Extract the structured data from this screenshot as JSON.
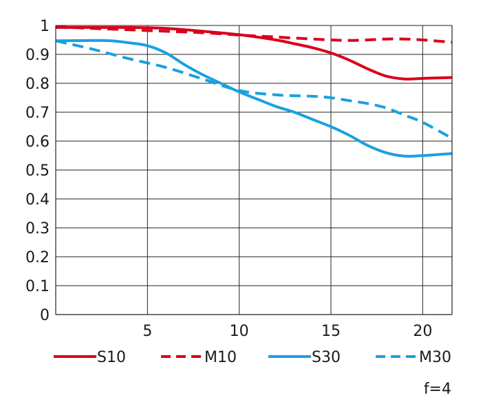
{
  "chart_data": {
    "type": "line",
    "title": "",
    "xlabel": "",
    "ylabel": "",
    "xlim": [
      0,
      21.6
    ],
    "ylim": [
      0,
      1
    ],
    "x_ticks": [
      5,
      10,
      15,
      20
    ],
    "x_tick_labels": [
      "5",
      "10",
      "15",
      "20"
    ],
    "y_ticks": [
      0,
      0.1,
      0.2,
      0.3,
      0.4,
      0.5,
      0.6,
      0.7,
      0.8,
      0.9,
      1
    ],
    "y_tick_labels": [
      "0",
      "0.1",
      "0.2",
      "0.3",
      "0.4",
      "0.5",
      "0.6",
      "0.7",
      "0.8",
      "0.9",
      "1"
    ],
    "grid": true,
    "legend_position": "bottom",
    "annotation": "f=4",
    "series": [
      {
        "name": "S10",
        "color": "#d9001b",
        "dash": "solid",
        "points": [
          [
            0,
            0.993
          ],
          [
            2,
            0.993
          ],
          [
            4,
            0.993
          ],
          [
            6,
            0.99
          ],
          [
            8,
            0.98
          ],
          [
            10,
            0.968
          ],
          [
            12,
            0.95
          ],
          [
            13,
            0.937
          ],
          [
            14,
            0.923
          ],
          [
            15,
            0.905
          ],
          [
            16,
            0.88
          ],
          [
            17,
            0.85
          ],
          [
            18,
            0.825
          ],
          [
            19,
            0.815
          ],
          [
            20,
            0.817
          ],
          [
            21.6,
            0.82
          ]
        ]
      },
      {
        "name": "M10",
        "color": "#d9001b",
        "dash": "dashed",
        "points": [
          [
            0,
            0.995
          ],
          [
            2,
            0.99
          ],
          [
            4,
            0.985
          ],
          [
            6,
            0.98
          ],
          [
            8,
            0.975
          ],
          [
            10,
            0.967
          ],
          [
            12,
            0.96
          ],
          [
            14,
            0.953
          ],
          [
            15,
            0.95
          ],
          [
            16,
            0.948
          ],
          [
            17,
            0.95
          ],
          [
            18,
            0.953
          ],
          [
            19,
            0.953
          ],
          [
            20,
            0.95
          ],
          [
            21.6,
            0.942
          ]
        ]
      },
      {
        "name": "S30",
        "color": "#1aa0e0",
        "dash": "solid",
        "points": [
          [
            0,
            0.947
          ],
          [
            2,
            0.948
          ],
          [
            3,
            0.947
          ],
          [
            4,
            0.94
          ],
          [
            5,
            0.93
          ],
          [
            6,
            0.905
          ],
          [
            7,
            0.865
          ],
          [
            8,
            0.83
          ],
          [
            9,
            0.8
          ],
          [
            10,
            0.77
          ],
          [
            11,
            0.745
          ],
          [
            12,
            0.72
          ],
          [
            13,
            0.7
          ],
          [
            14,
            0.675
          ],
          [
            15,
            0.65
          ],
          [
            16,
            0.62
          ],
          [
            17,
            0.585
          ],
          [
            18,
            0.56
          ],
          [
            19,
            0.548
          ],
          [
            20,
            0.55
          ],
          [
            21.6,
            0.557
          ]
        ]
      },
      {
        "name": "M30",
        "color": "#1aa0e0",
        "dash": "dashed",
        "points": [
          [
            0,
            0.947
          ],
          [
            2,
            0.918
          ],
          [
            4,
            0.885
          ],
          [
            6,
            0.855
          ],
          [
            8,
            0.815
          ],
          [
            10,
            0.775
          ],
          [
            12,
            0.76
          ],
          [
            14,
            0.755
          ],
          [
            15,
            0.75
          ],
          [
            16,
            0.74
          ],
          [
            17,
            0.73
          ],
          [
            18,
            0.715
          ],
          [
            19,
            0.69
          ],
          [
            20,
            0.665
          ],
          [
            21.6,
            0.61
          ]
        ]
      }
    ]
  }
}
